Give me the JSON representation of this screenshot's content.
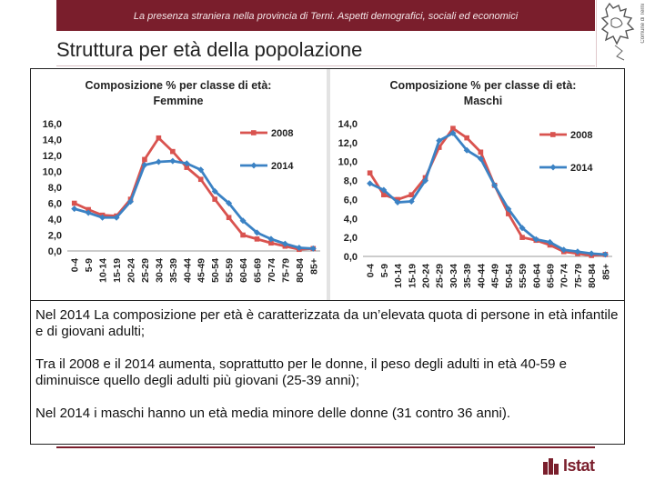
{
  "header": {
    "banner_text": "La presenza straniera nella provincia di Terni. Aspetti demografici, sociali ed economici",
    "logo_side_text": "Comune di Terni"
  },
  "slide": {
    "title": "Struttura per età della popolazione"
  },
  "colors": {
    "brand": "#7a1e2c",
    "series_2008": "#d9534f",
    "series_2014": "#3b82c4"
  },
  "chart_data": [
    {
      "type": "line",
      "title_line1": "Composizione % per classe di età:",
      "title_line2": "Femmine",
      "categories": [
        "0-4",
        "5-9",
        "10-14",
        "15-19",
        "20-24",
        "25-29",
        "30-34",
        "35-39",
        "40-44",
        "45-49",
        "50-54",
        "55-59",
        "60-64",
        "65-69",
        "70-74",
        "75-79",
        "80-84",
        "85+"
      ],
      "series": [
        {
          "name": "2008",
          "values": [
            6.0,
            5.2,
            4.5,
            4.4,
            6.5,
            11.5,
            14.2,
            12.5,
            10.5,
            9.0,
            6.5,
            4.2,
            2.0,
            1.5,
            1.0,
            0.6,
            0.2,
            0.3
          ]
        },
        {
          "name": "2014",
          "values": [
            5.3,
            4.8,
            4.2,
            4.2,
            6.2,
            10.8,
            11.2,
            11.3,
            11.0,
            10.2,
            7.5,
            6.0,
            3.8,
            2.3,
            1.5,
            0.9,
            0.4,
            0.3
          ]
        }
      ],
      "ylim": [
        0,
        16
      ],
      "yticks": [
        "0,0",
        "2,0",
        "4,0",
        "6,0",
        "8,0",
        "10,0",
        "12,0",
        "14,0",
        "16,0"
      ]
    },
    {
      "type": "line",
      "title_line1": "Composizione % per classe di età:",
      "title_line2": "Maschi",
      "categories": [
        "0-4",
        "5-9",
        "10-14",
        "15-19",
        "20-24",
        "25-29",
        "30-34",
        "35-39",
        "40-44",
        "45-49",
        "50-54",
        "55-59",
        "60-64",
        "65-69",
        "70-74",
        "75-79",
        "80-84",
        "85+"
      ],
      "series": [
        {
          "name": "2008",
          "values": [
            8.8,
            6.5,
            6.0,
            6.5,
            8.3,
            11.5,
            13.5,
            12.5,
            11.0,
            7.5,
            4.5,
            2.0,
            1.7,
            1.2,
            0.5,
            0.3,
            0.1,
            0.2
          ]
        },
        {
          "name": "2014",
          "values": [
            7.7,
            7.0,
            5.7,
            5.8,
            8.0,
            12.2,
            13.0,
            11.2,
            10.3,
            7.5,
            5.0,
            3.0,
            1.8,
            1.5,
            0.7,
            0.5,
            0.3,
            0.2
          ]
        }
      ],
      "ylim": [
        0,
        14
      ],
      "yticks": [
        "0,0",
        "2,0",
        "4,0",
        "6,0",
        "8,0",
        "10,0",
        "12,0",
        "14,0"
      ]
    }
  ],
  "text": {
    "p1": "Nel 2014 La composizione per età è caratterizzata da un’elevata quota di persone in età infantile e di giovani adulti;",
    "p2": "Tra il 2008 e il 2014 aumenta, soprattutto per le donne, il peso degli adulti in età 40-59 e diminuisce quello degli adulti più giovani (25-39 anni);",
    "p3": "Nel 2014 i maschi hanno un età media minore delle donne (31 contro 36 anni)."
  },
  "footer": {
    "logo_text": "Istat"
  }
}
